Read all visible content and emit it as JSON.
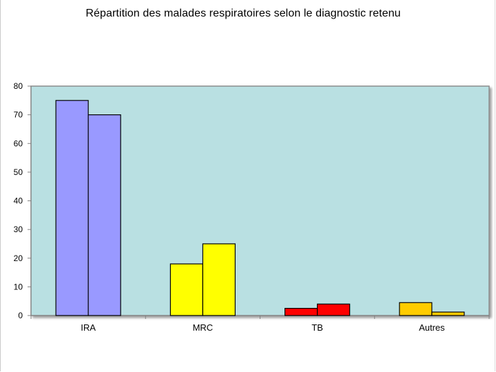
{
  "chart_data": {
    "type": "bar",
    "title": "Répartition des malades respiratoires  selon le diagnostic retenu",
    "xlabel": "",
    "ylabel": "",
    "categories": [
      "IRA",
      "MRC",
      "TB",
      "Autres"
    ],
    "series": [
      {
        "values": [
          75,
          18,
          2.5,
          4.5
        ]
      },
      {
        "values": [
          70,
          25,
          4,
          1.2
        ]
      }
    ],
    "category_colors": [
      "#9999ff",
      "#ffff00",
      "#ff0000",
      "#ffcc00"
    ],
    "ylim": [
      0,
      80
    ],
    "yticks": [
      0,
      10,
      20,
      30,
      40,
      50,
      60,
      70,
      80
    ],
    "plot_background": "#b9e0e2",
    "grid": false,
    "legend": "none"
  }
}
